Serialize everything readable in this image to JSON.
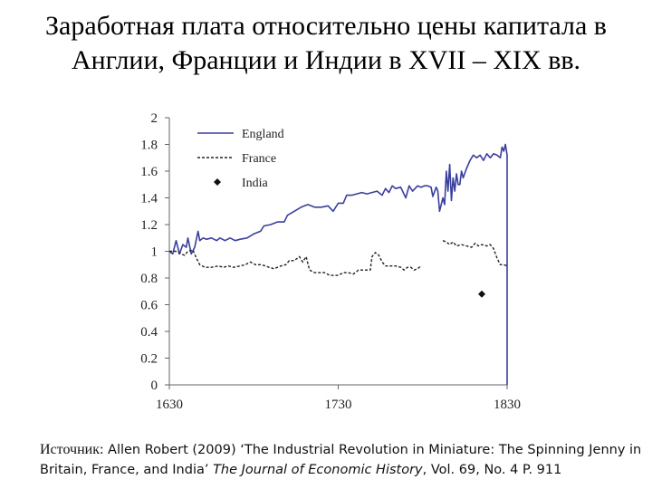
{
  "slide": {
    "title_line1": "Заработная плата относительно цены капитала в",
    "title_line2": "Англии, Франции и Индии в XVII – XIX вв.",
    "source": {
      "label": "Источник:",
      "author": "Allen Robert (2009)",
      "article": "‘The Industrial Revolution in Miniature: The Spinning Jenny in Britain, France, and India’",
      "journal": "The Journal of Economic History",
      "details": ", Vol. 69, No. 4 P. 911"
    }
  },
  "chart_data": {
    "type": "line",
    "title": "",
    "xlabel": "",
    "ylabel": "",
    "xlim": [
      1630,
      1830
    ],
    "ylim": [
      0,
      2
    ],
    "x_ticks": [
      1630,
      1730,
      1830
    ],
    "y_ticks": [
      "0",
      "0.2",
      "0.4",
      "0.6",
      "0.8",
      "1",
      "1.2",
      "1.4",
      "1.6",
      "1.8",
      "2"
    ],
    "legend_position": "top-left",
    "grid": false,
    "series": [
      {
        "name": "England",
        "style": "solid",
        "color": "#3a3f9c",
        "points": [
          [
            1630,
            1.0
          ],
          [
            1632,
            0.98
          ],
          [
            1634,
            1.08
          ],
          [
            1636,
            0.98
          ],
          [
            1638,
            1.05
          ],
          [
            1640,
            1.03
          ],
          [
            1641,
            1.1
          ],
          [
            1643,
            0.98
          ],
          [
            1645,
            1.03
          ],
          [
            1647,
            1.15
          ],
          [
            1648,
            1.08
          ],
          [
            1650,
            1.1
          ],
          [
            1652,
            1.09
          ],
          [
            1655,
            1.1
          ],
          [
            1658,
            1.08
          ],
          [
            1660,
            1.1
          ],
          [
            1663,
            1.08
          ],
          [
            1666,
            1.1
          ],
          [
            1669,
            1.08
          ],
          [
            1672,
            1.09
          ],
          [
            1676,
            1.1
          ],
          [
            1680,
            1.13
          ],
          [
            1684,
            1.15
          ],
          [
            1686,
            1.19
          ],
          [
            1690,
            1.2
          ],
          [
            1694,
            1.22
          ],
          [
            1698,
            1.22
          ],
          [
            1700,
            1.27
          ],
          [
            1704,
            1.3
          ],
          [
            1708,
            1.33
          ],
          [
            1712,
            1.35
          ],
          [
            1716,
            1.33
          ],
          [
            1720,
            1.33
          ],
          [
            1724,
            1.34
          ],
          [
            1727,
            1.3
          ],
          [
            1730,
            1.36
          ],
          [
            1733,
            1.36
          ],
          [
            1735,
            1.42
          ],
          [
            1738,
            1.42
          ],
          [
            1741,
            1.43
          ],
          [
            1744,
            1.44
          ],
          [
            1747,
            1.43
          ],
          [
            1750,
            1.44
          ],
          [
            1753,
            1.45
          ],
          [
            1756,
            1.42
          ],
          [
            1758,
            1.47
          ],
          [
            1760,
            1.44
          ],
          [
            1762,
            1.49
          ],
          [
            1764,
            1.47
          ],
          [
            1767,
            1.48
          ],
          [
            1770,
            1.4
          ],
          [
            1772,
            1.49
          ],
          [
            1774,
            1.45
          ],
          [
            1777,
            1.49
          ],
          [
            1779,
            1.48
          ],
          [
            1781,
            1.49
          ],
          [
            1783,
            1.49
          ],
          [
            1785,
            1.48
          ],
          [
            1786,
            1.41
          ],
          [
            1788,
            1.48
          ],
          [
            1789,
            1.45
          ],
          [
            1790,
            1.3
          ],
          [
            1792,
            1.4
          ],
          [
            1793,
            1.35
          ],
          [
            1794,
            1.6
          ],
          [
            1795,
            1.45
          ],
          [
            1796,
            1.65
          ],
          [
            1797,
            1.38
          ],
          [
            1798,
            1.55
          ],
          [
            1799,
            1.45
          ],
          [
            1800,
            1.58
          ],
          [
            1801,
            1.5
          ],
          [
            1802,
            1.5
          ],
          [
            1803,
            1.6
          ],
          [
            1804,
            1.55
          ],
          [
            1806,
            1.62
          ],
          [
            1808,
            1.68
          ],
          [
            1810,
            1.72
          ],
          [
            1812,
            1.7
          ],
          [
            1814,
            1.72
          ],
          [
            1816,
            1.68
          ],
          [
            1818,
            1.73
          ],
          [
            1820,
            1.7
          ],
          [
            1822,
            1.73
          ],
          [
            1824,
            1.72
          ],
          [
            1826,
            1.7
          ],
          [
            1827,
            1.78
          ],
          [
            1828,
            1.75
          ],
          [
            1829,
            1.8
          ],
          [
            1830,
            1.72
          ],
          [
            1830,
            0.0
          ]
        ]
      },
      {
        "name": "France",
        "style": "dashed",
        "color": "#222222",
        "segments": [
          [
            [
              1630,
              1.0
            ],
            [
              1634,
              1.0
            ],
            [
              1637,
              0.98
            ],
            [
              1639,
              0.97
            ],
            [
              1641,
              1.0
            ],
            [
              1644,
              1.01
            ],
            [
              1646,
              0.95
            ],
            [
              1648,
              0.9
            ],
            [
              1651,
              0.88
            ],
            [
              1655,
              0.88
            ],
            [
              1659,
              0.89
            ],
            [
              1662,
              0.88
            ],
            [
              1665,
              0.89
            ],
            [
              1668,
              0.88
            ],
            [
              1672,
              0.89
            ],
            [
              1675,
              0.9
            ],
            [
              1678,
              0.92
            ],
            [
              1681,
              0.9
            ],
            [
              1684,
              0.9
            ],
            [
              1687,
              0.89
            ],
            [
              1689,
              0.88
            ],
            [
              1692,
              0.87
            ],
            [
              1696,
              0.89
            ],
            [
              1699,
              0.9
            ],
            [
              1701,
              0.93
            ],
            [
              1704,
              0.93
            ],
            [
              1707,
              0.96
            ],
            [
              1709,
              0.92
            ],
            [
              1711,
              0.96
            ],
            [
              1713,
              0.86
            ],
            [
              1716,
              0.84
            ],
            [
              1719,
              0.84
            ],
            [
              1722,
              0.84
            ],
            [
              1725,
              0.82
            ],
            [
              1728,
              0.82
            ],
            [
              1730,
              0.82
            ],
            [
              1733,
              0.84
            ],
            [
              1736,
              0.84
            ],
            [
              1739,
              0.83
            ],
            [
              1742,
              0.86
            ],
            [
              1746,
              0.86
            ],
            [
              1749,
              0.86
            ],
            [
              1750,
              0.96
            ],
            [
              1752,
              0.99
            ],
            [
              1754,
              0.97
            ],
            [
              1756,
              0.92
            ],
            [
              1758,
              0.89
            ],
            [
              1761,
              0.89
            ],
            [
              1764,
              0.89
            ],
            [
              1767,
              0.88
            ],
            [
              1769,
              0.86
            ],
            [
              1771,
              0.88
            ],
            [
              1773,
              0.88
            ],
            [
              1775,
              0.86
            ],
            [
              1777,
              0.87
            ],
            [
              1779,
              0.89
            ]
          ],
          [
            [
              1792,
              1.08
            ],
            [
              1794,
              1.07
            ],
            [
              1796,
              1.05
            ],
            [
              1798,
              1.07
            ],
            [
              1800,
              1.04
            ],
            [
              1803,
              1.05
            ],
            [
              1806,
              1.04
            ],
            [
              1809,
              1.03
            ],
            [
              1811,
              1.06
            ],
            [
              1813,
              1.04
            ],
            [
              1815,
              1.05
            ],
            [
              1818,
              1.04
            ],
            [
              1820,
              1.05
            ],
            [
              1822,
              1.02
            ],
            [
              1824,
              0.95
            ],
            [
              1826,
              0.9
            ],
            [
              1828,
              0.9
            ],
            [
              1830,
              0.89
            ]
          ]
        ]
      },
      {
        "name": "India",
        "style": "marker",
        "color": "#111111",
        "points": [
          [
            1815,
            0.68
          ]
        ]
      }
    ]
  }
}
